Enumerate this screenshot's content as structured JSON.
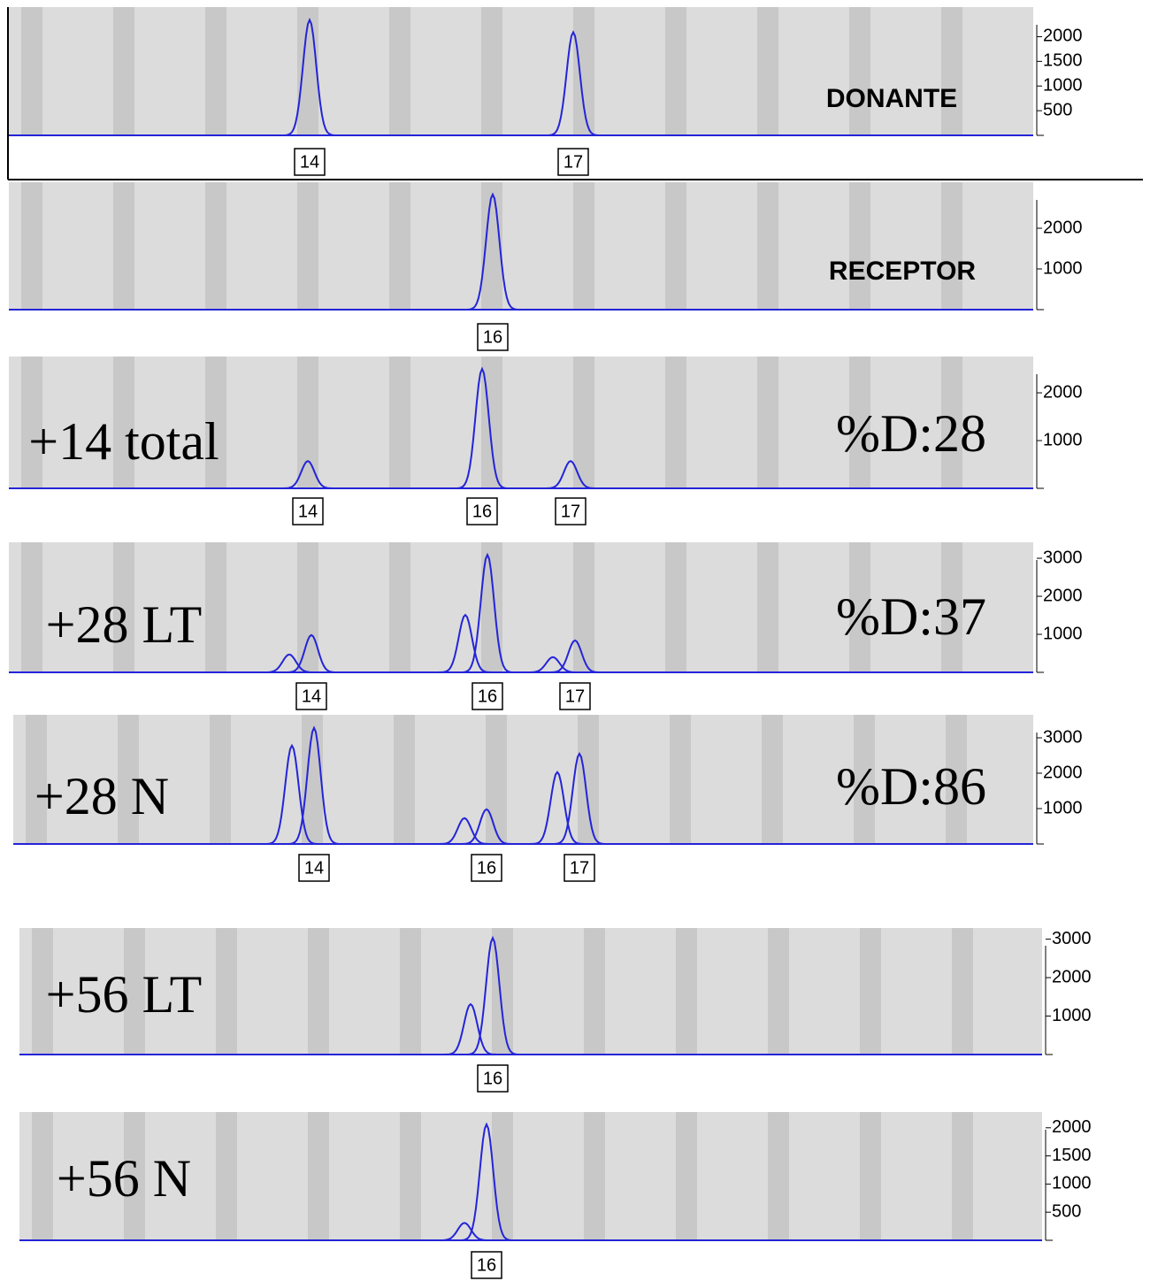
{
  "chart_data": [
    {
      "type": "line",
      "title": "DONANTE",
      "categories": [
        "14",
        "17"
      ],
      "values": [
        2340,
        2090
      ],
      "shoulder_values": [
        null,
        null
      ],
      "ylim": [
        0,
        2600
      ],
      "yticks": [
        500,
        1000,
        1500,
        2000
      ],
      "color": "#2424d8"
    },
    {
      "type": "line",
      "title": "RECEPTOR",
      "categories": [
        "16"
      ],
      "values": [
        2830
      ],
      "shoulder_values": [
        null
      ],
      "ylim": [
        0,
        3130
      ],
      "yticks": [
        1000,
        2000
      ],
      "color": "#2424d8"
    },
    {
      "type": "line",
      "title": "+14 total",
      "annotation": "%D:28",
      "categories": [
        "14",
        "16",
        "17"
      ],
      "values": [
        570,
        2500,
        570
      ],
      "shoulder_values": [
        null,
        null,
        null
      ],
      "ylim": [
        0,
        2760
      ],
      "yticks": [
        1000,
        2000
      ],
      "color": "#2424d8"
    },
    {
      "type": "line",
      "title": "+28 LT",
      "annotation": "%D:37",
      "categories": [
        "14",
        "16",
        "17"
      ],
      "values": [
        980,
        3090,
        840
      ],
      "shoulder_values": [
        470,
        1510,
        400
      ],
      "ylim": [
        0,
        3420
      ],
      "yticks": [
        1000,
        2000,
        3000
      ],
      "color": "#2424d8"
    },
    {
      "type": "line",
      "title": "+28 N",
      "annotation": "%D:86",
      "categories": [
        "14",
        "16",
        "17"
      ],
      "values": [
        3280,
        980,
        2550
      ],
      "shoulder_values": [
        2780,
        730,
        2030
      ],
      "ylim": [
        0,
        3650
      ],
      "yticks": [
        1000,
        2000,
        3000
      ],
      "color": "#2424d8"
    },
    {
      "type": "line",
      "title": "+56 LT",
      "categories": [
        "16"
      ],
      "values": [
        3030
      ],
      "shoulder_values": [
        1310
      ],
      "ylim": [
        0,
        3290
      ],
      "yticks": [
        1000,
        2000,
        3000
      ],
      "color": "#2424d8"
    },
    {
      "type": "line",
      "title": "+56 N",
      "categories": [
        "16"
      ],
      "values": [
        2060
      ],
      "shoulder_values": [
        310
      ],
      "ylim": [
        0,
        2280
      ],
      "yticks": [
        500,
        1000,
        1500,
        2000
      ],
      "color": "#2424d8"
    }
  ]
}
